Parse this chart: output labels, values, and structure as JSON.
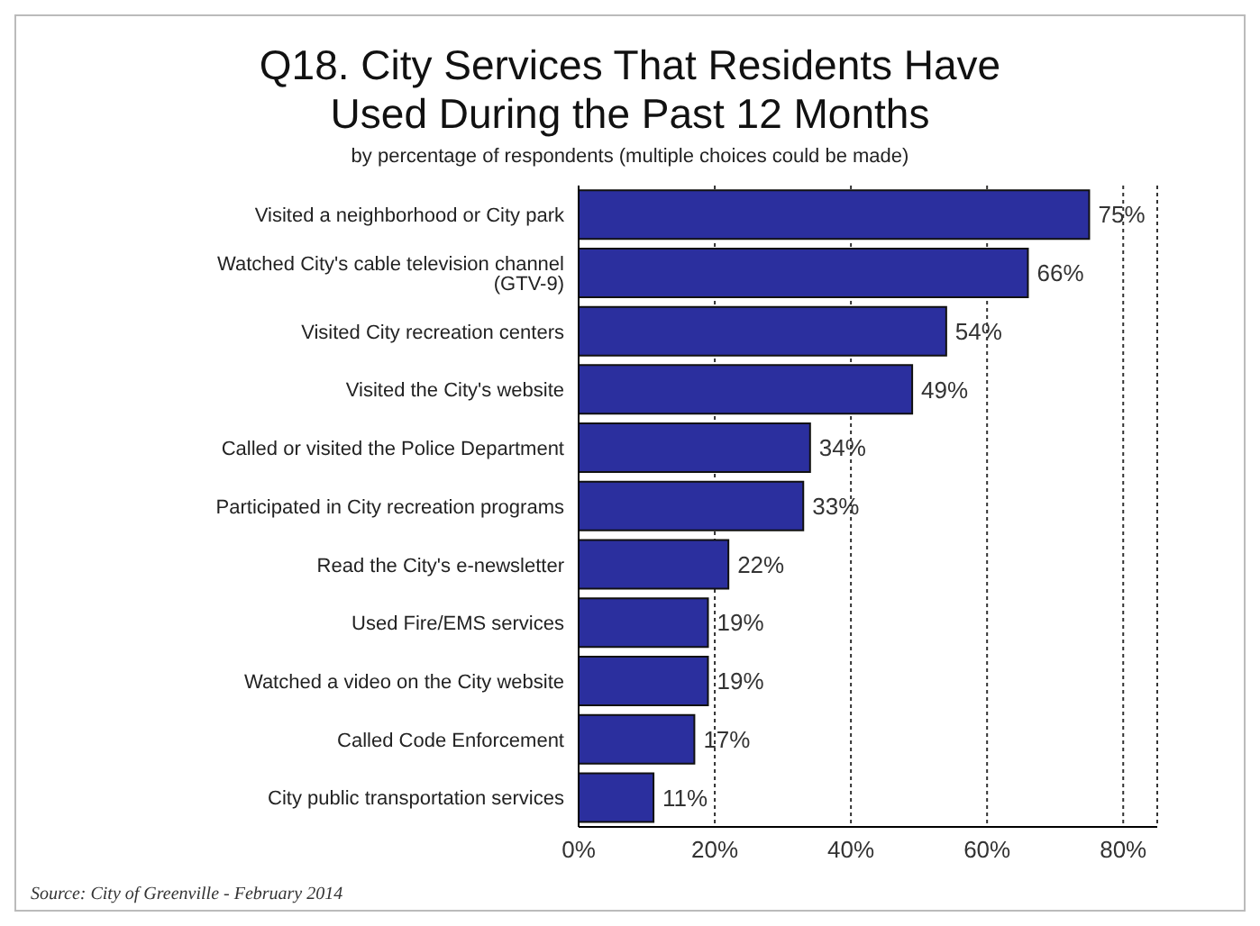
{
  "chart_data": {
    "type": "bar",
    "orientation": "horizontal",
    "title": "Q18. City Services That Residents Have Used During the Past 12 Months",
    "subtitle": "by percentage of respondents (multiple choices could be made)",
    "categories": [
      "Visited a neighborhood or City park",
      "Watched City's cable television channel (GTV-9)",
      "Visited City recreation centers",
      "Visited the City's website",
      "Called or visited the Police Department",
      "Participated in City recreation programs",
      "Read the City's e-newsletter",
      "Used Fire/EMS services",
      "Watched a video on the City website",
      "Called Code Enforcement",
      "City public transportation services"
    ],
    "values": [
      75,
      66,
      54,
      49,
      34,
      33,
      22,
      19,
      19,
      17,
      11
    ],
    "value_labels": [
      "75%",
      "66%",
      "54%",
      "49%",
      "34%",
      "33%",
      "22%",
      "19%",
      "19%",
      "17%",
      "11%"
    ],
    "color": "#2b2f9e",
    "xlim": [
      0,
      85
    ],
    "xticks": [
      {
        "value": 0,
        "label": "0%"
      },
      {
        "value": 20,
        "label": "20%"
      },
      {
        "value": 40,
        "label": "40%"
      },
      {
        "value": 60,
        "label": "60%"
      },
      {
        "value": 80,
        "label": "80%"
      }
    ],
    "grid": "x",
    "annotations": [
      "Source: City of Greenville - February 2014"
    ]
  }
}
